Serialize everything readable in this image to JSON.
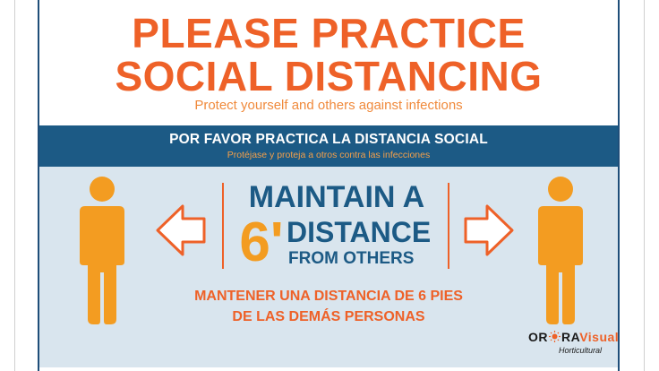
{
  "headline": {
    "line1": "PLEASE PRACTICE",
    "line2": "SOCIAL DISTANCING",
    "subtitle": "Protect yourself and others against infections"
  },
  "band": {
    "title": "POR FAVOR PRACTICA LA DISTANCIA SOCIAL",
    "subtitle": "Protéjase y proteja a otros contra las infecciones"
  },
  "center": {
    "maintain": "MAINTAIN A",
    "distance_value": "6'",
    "distance": "DISTANCE",
    "from": "FROM OTHERS"
  },
  "spanish": {
    "line1": "MANTENER UNA DISTANCIA DE 6 PIES",
    "line2": "DE LAS DEMÁS PERSONAS"
  },
  "logo": {
    "name_part1": "OR",
    "name_part2": "RA",
    "name_part3": "Visual",
    "tagline": "Horticultural"
  },
  "colors": {
    "orange": "#ee6128",
    "figure_orange": "#f39c21",
    "navy": "#1c5a85",
    "panel": "#d9e5ee"
  },
  "icons": [
    "person-icon",
    "left-arrow-icon",
    "right-arrow-icon",
    "sun-logo-icon"
  ]
}
